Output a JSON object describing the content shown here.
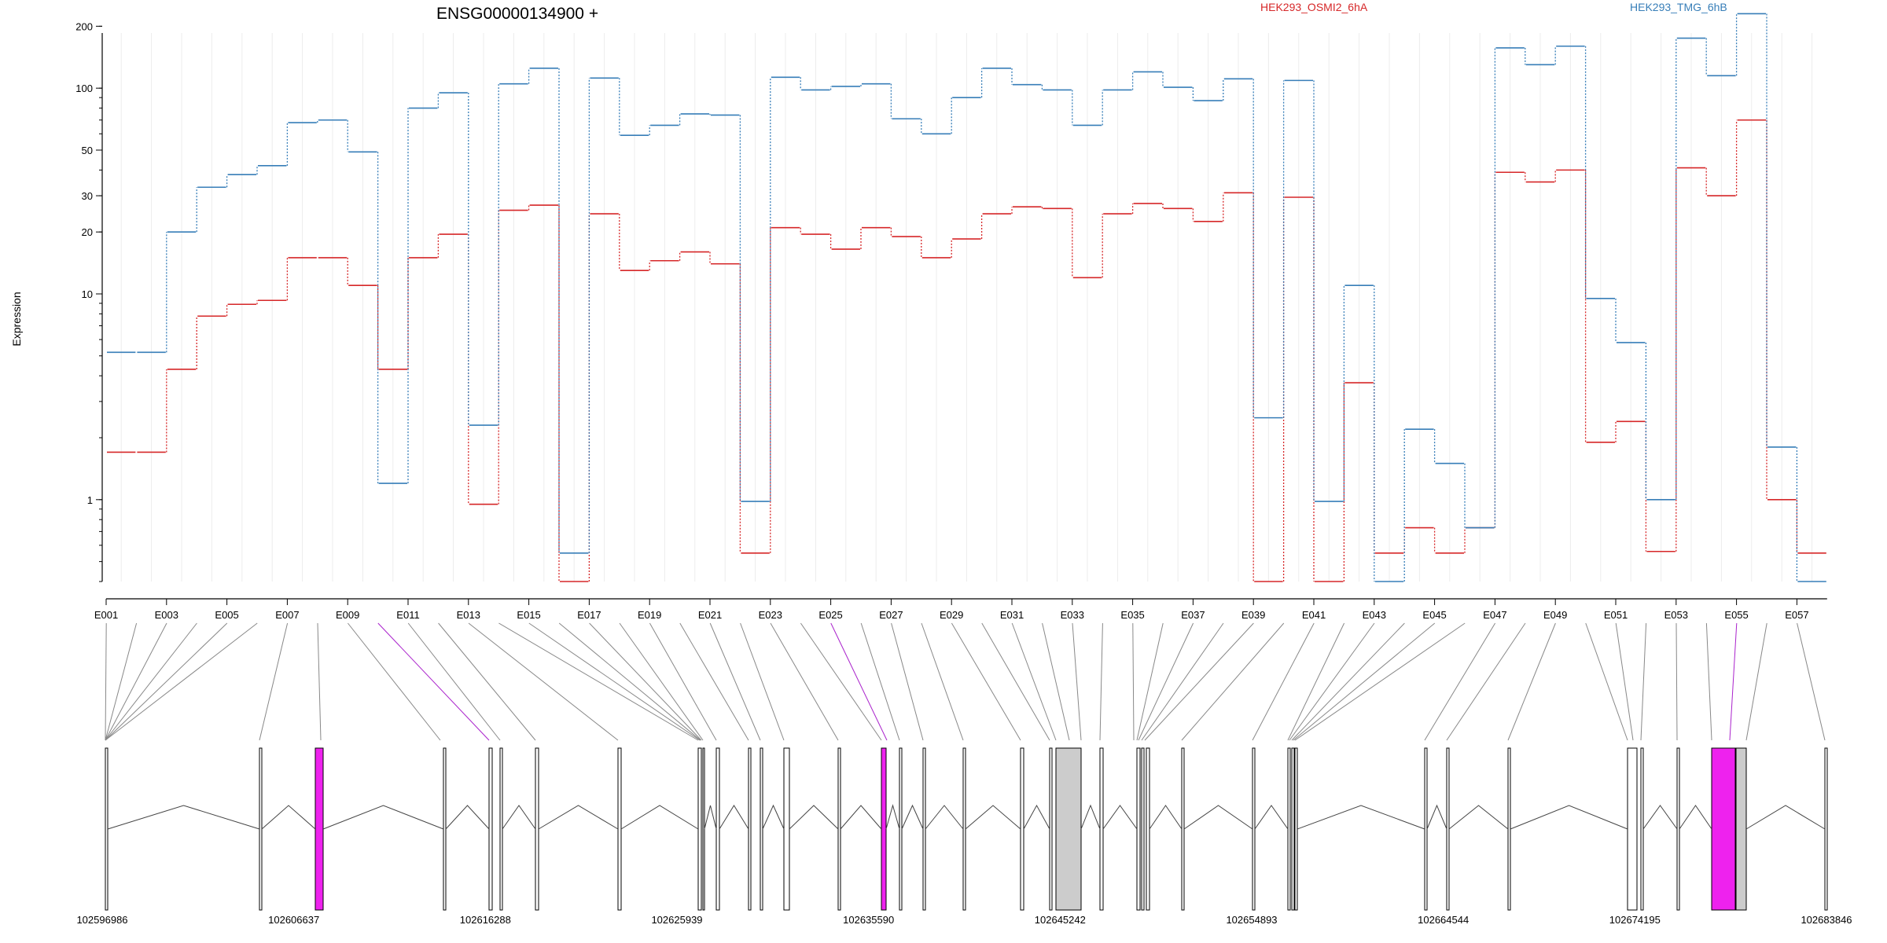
{
  "chart_data": {
    "type": "line",
    "title": "ENSG00000134900 +",
    "ylabel": "Expression",
    "xlabel": "",
    "yscale": "log",
    "ylim": [
      0.4,
      250
    ],
    "yticks": [
      1,
      10,
      20,
      30,
      50,
      100,
      200
    ],
    "grid": true,
    "legend_placement": "top",
    "exon_tick_labels": [
      "E001",
      "E003",
      "E005",
      "E007",
      "E009",
      "E011",
      "E013",
      "E015",
      "E017",
      "E019",
      "E021",
      "E023",
      "E025",
      "E027",
      "E029",
      "E031",
      "E033",
      "E035",
      "E037",
      "E039",
      "E041",
      "E043",
      "E045",
      "E047",
      "E049",
      "E051",
      "E053",
      "E055",
      "E057"
    ],
    "exons": [
      "E001",
      "E002",
      "E003",
      "E004",
      "E005",
      "E006",
      "E007",
      "E008",
      "E009",
      "E010",
      "E011",
      "E012",
      "E013",
      "E014",
      "E015",
      "E016",
      "E017",
      "E018",
      "E019",
      "E020",
      "E021",
      "E022",
      "E023",
      "E024",
      "E025",
      "E026",
      "E027",
      "E028",
      "E029",
      "E030",
      "E031",
      "E032",
      "E033",
      "E034",
      "E035",
      "E036",
      "E037",
      "E038",
      "E039",
      "E040",
      "E041",
      "E042",
      "E043",
      "E044",
      "E045",
      "E046",
      "E047",
      "E048",
      "E049",
      "E050",
      "E051",
      "E052",
      "E053",
      "E054",
      "E055",
      "E056",
      "E057"
    ],
    "series": [
      {
        "name": "HEK293_OSMI2_6hA",
        "color": "#d62728",
        "values": [
          1.7,
          1.7,
          4.3,
          7.8,
          8.9,
          9.3,
          15,
          15,
          11,
          4.3,
          15,
          19.5,
          0.95,
          25.5,
          27,
          0.4,
          24.5,
          13,
          14.5,
          16,
          14,
          0.55,
          21,
          19.5,
          16.5,
          21,
          19,
          15,
          18.5,
          24.5,
          26.5,
          26,
          12,
          24.5,
          27.5,
          26,
          22.5,
          31,
          0.4,
          29.5,
          0.4,
          3.7,
          0.55,
          0.73,
          0.55,
          0.73,
          39,
          35,
          40,
          1.9,
          2.4,
          0.56,
          41,
          30,
          70,
          1,
          0.55
        ]
      },
      {
        "name": "HEK293_TMG_6hB",
        "color": "#377eb8",
        "values": [
          5.2,
          5.2,
          20,
          33,
          38,
          42,
          68,
          70,
          49,
          1.2,
          80,
          95,
          2.3,
          105,
          125,
          0.55,
          112,
          59,
          66,
          75,
          74,
          0.98,
          113,
          98,
          102,
          105,
          71,
          60,
          90,
          125,
          104,
          98,
          66,
          98,
          120,
          101,
          87,
          111,
          2.5,
          109,
          0.98,
          11,
          0.4,
          2.2,
          1.5,
          0.73,
          157,
          130,
          160,
          9.5,
          5.8,
          1,
          175,
          115,
          230,
          1.8,
          0.4
        ]
      }
    ]
  },
  "gene_model": {
    "coordinate_labels": [
      "102596986",
      "102606637",
      "102616288",
      "102625939",
      "102635590",
      "102645242",
      "102654893",
      "102664544",
      "102674195",
      "102683846"
    ],
    "highlight_color": "#ee22ee",
    "intron_color": "#cccccc"
  }
}
